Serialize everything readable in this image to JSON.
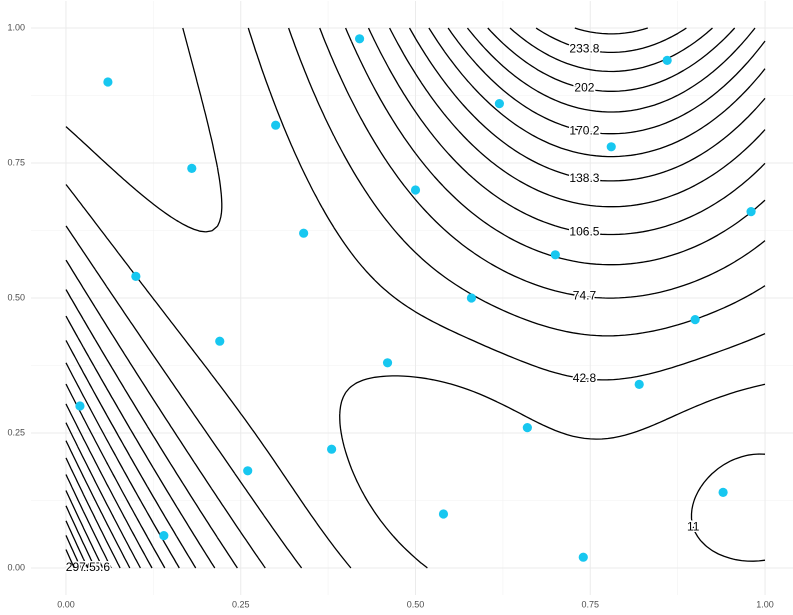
{
  "chart_data": {
    "type": "contour-scatter",
    "contour_levels": [
      11,
      26.9,
      42.8,
      58.7,
      74.7,
      90.6,
      106.5,
      122.4,
      138.3,
      154.3,
      170.2,
      186.1,
      202,
      217.9,
      233.8,
      249.8,
      265.6,
      281.5,
      297.5,
      313.4
    ],
    "line_color": "#000000",
    "x": [
      0.06,
      0.42,
      0.86,
      0.62,
      0.78,
      0.3,
      0.18,
      0.5,
      0.98,
      0.34,
      0.1,
      0.7,
      0.58,
      0.9,
      0.22,
      0.46,
      0.82,
      0.02,
      0.66,
      0.38,
      0.26,
      0.94,
      0.54,
      0.14,
      0.74
    ],
    "y": [
      0.9,
      0.98,
      0.94,
      0.86,
      0.78,
      0.82,
      0.74,
      0.7,
      0.66,
      0.62,
      0.54,
      0.58,
      0.5,
      0.46,
      0.42,
      0.38,
      0.34,
      0.3,
      0.26,
      0.22,
      0.18,
      0.14,
      0.1,
      0.06,
      0.02
    ],
    "point_color": "#17c7f0",
    "xlim": [
      -0.05,
      1.05
    ],
    "ylim": [
      -0.05,
      1.05
    ],
    "xticks": [
      {
        "value": 0,
        "label": "0.00"
      },
      {
        "value": 0.25,
        "label": "0.25"
      },
      {
        "value": 0.5,
        "label": "0.50"
      },
      {
        "value": 0.75,
        "label": "0.75"
      },
      {
        "value": 1,
        "label": "1.00"
      }
    ],
    "yticks": [
      {
        "value": 0,
        "label": "0.00"
      },
      {
        "value": 0.25,
        "label": "0.25"
      },
      {
        "value": 0.5,
        "label": "0.50"
      },
      {
        "value": 0.75,
        "label": "0.75"
      },
      {
        "value": 1,
        "label": "1.00"
      }
    ],
    "xminor": [
      0.125,
      0.375,
      0.625,
      0.875
    ],
    "yminor": [
      0.125,
      0.375,
      0.625,
      0.875
    ],
    "grid": true
  }
}
